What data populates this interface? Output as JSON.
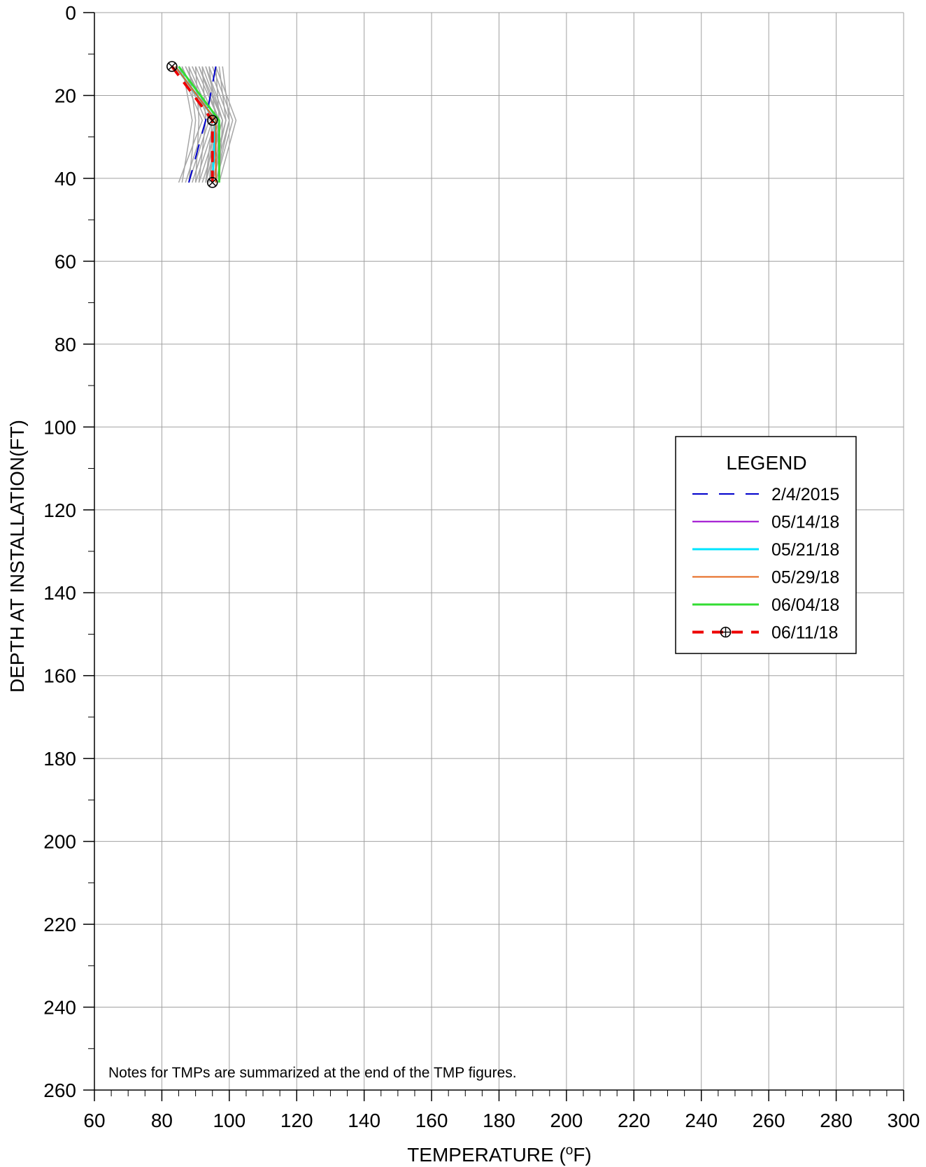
{
  "chart_data": {
    "type": "line",
    "xlabel": "TEMPERATURE (",
    "xlabel_unit": "o",
    "xlabel_end": "F)",
    "ylabel": "DEPTH AT INSTALLATION(FT)",
    "xlim": [
      60,
      300
    ],
    "ylim": [
      0,
      260
    ],
    "y_inverted": true,
    "x_ticks": [
      60,
      80,
      100,
      120,
      140,
      160,
      180,
      200,
      220,
      240,
      260,
      280,
      300
    ],
    "y_ticks": [
      0,
      20,
      40,
      60,
      80,
      100,
      120,
      140,
      160,
      180,
      200,
      220,
      240,
      260
    ],
    "grid": true,
    "legend": {
      "title": "LEGEND",
      "position": "right"
    },
    "note": "Notes for TMPs are summarized at the end of the TMP figures.",
    "background_series_color": "#a6a6a6",
    "background_series": [
      {
        "points": [
          [
            85,
            13
          ],
          [
            92,
            26
          ],
          [
            85,
            41
          ]
        ]
      },
      {
        "points": [
          [
            86,
            13
          ],
          [
            93,
            26
          ],
          [
            87,
            41
          ]
        ]
      },
      {
        "points": [
          [
            87,
            13
          ],
          [
            94,
            26
          ],
          [
            88,
            41
          ]
        ]
      },
      {
        "points": [
          [
            88,
            13
          ],
          [
            95,
            26
          ],
          [
            89,
            41
          ]
        ]
      },
      {
        "points": [
          [
            89,
            13
          ],
          [
            96,
            26
          ],
          [
            90,
            41
          ]
        ]
      },
      {
        "points": [
          [
            90,
            13
          ],
          [
            97,
            26
          ],
          [
            91,
            41
          ]
        ]
      },
      {
        "points": [
          [
            91,
            13
          ],
          [
            98,
            26
          ],
          [
            92,
            41
          ]
        ]
      },
      {
        "points": [
          [
            92,
            13
          ],
          [
            98,
            26
          ],
          [
            93,
            41
          ]
        ]
      },
      {
        "points": [
          [
            93,
            13
          ],
          [
            99,
            26
          ],
          [
            94,
            41
          ]
        ]
      },
      {
        "points": [
          [
            94,
            13
          ],
          [
            100,
            26
          ],
          [
            95,
            41
          ]
        ]
      },
      {
        "points": [
          [
            95,
            13
          ],
          [
            101,
            26
          ],
          [
            96,
            41
          ]
        ]
      },
      {
        "points": [
          [
            96,
            13
          ],
          [
            102,
            26
          ],
          [
            97,
            41
          ]
        ]
      },
      {
        "points": [
          [
            97,
            13
          ],
          [
            99,
            26
          ],
          [
            95,
            41
          ]
        ]
      },
      {
        "points": [
          [
            98,
            13
          ],
          [
            100,
            26
          ],
          [
            96,
            41
          ]
        ]
      },
      {
        "points": [
          [
            86,
            13
          ],
          [
            89,
            26
          ],
          [
            86,
            41
          ]
        ]
      },
      {
        "points": [
          [
            88,
            13
          ],
          [
            90,
            26
          ],
          [
            88,
            41
          ]
        ]
      },
      {
        "points": [
          [
            90,
            13
          ],
          [
            91,
            26
          ],
          [
            90,
            41
          ]
        ]
      },
      {
        "points": [
          [
            92,
            13
          ],
          [
            93,
            26
          ],
          [
            91,
            41
          ]
        ]
      },
      {
        "points": [
          [
            94,
            13
          ],
          [
            96,
            26
          ],
          [
            93,
            41
          ]
        ]
      },
      {
        "points": [
          [
            96,
            13
          ],
          [
            97,
            26
          ],
          [
            94,
            41
          ]
        ]
      },
      {
        "points": [
          [
            87,
            13
          ],
          [
            95,
            26
          ],
          [
            93,
            41
          ]
        ]
      },
      {
        "points": [
          [
            89,
            13
          ],
          [
            96,
            26
          ],
          [
            94,
            41
          ]
        ]
      },
      {
        "points": [
          [
            91,
            13
          ],
          [
            97,
            26
          ],
          [
            96,
            41
          ]
        ]
      },
      {
        "points": [
          [
            93,
            13
          ],
          [
            98,
            26
          ],
          [
            97,
            41
          ]
        ]
      }
    ],
    "series": [
      {
        "name": "2/4/2015",
        "color": "#0000cc",
        "dash": "22,16",
        "width": 2,
        "marker": false,
        "points": [
          [
            96,
            13
          ],
          [
            93,
            26
          ],
          [
            88,
            41
          ]
        ]
      },
      {
        "name": "05/14/18",
        "color": "#9900cc",
        "dash": "",
        "width": 2,
        "marker": false,
        "points": [
          [
            84,
            13
          ],
          [
            96,
            26
          ],
          [
            96,
            41
          ]
        ]
      },
      {
        "name": "05/21/18",
        "color": "#00e5ff",
        "dash": "",
        "width": 3,
        "marker": false,
        "points": [
          [
            84,
            13
          ],
          [
            96,
            26
          ],
          [
            95,
            41
          ]
        ]
      },
      {
        "name": "05/29/18",
        "color": "#e5661a",
        "dash": "",
        "width": 2,
        "marker": false,
        "points": [
          [
            84,
            13
          ],
          [
            96,
            26
          ],
          [
            96,
            41
          ]
        ]
      },
      {
        "name": "06/04/18",
        "color": "#33dd33",
        "dash": "",
        "width": 3,
        "marker": false,
        "points": [
          [
            85,
            13
          ],
          [
            97,
            26
          ],
          [
            97,
            41
          ]
        ]
      },
      {
        "name": "06/11/18",
        "color": "#ee0000",
        "dash": "16,12",
        "width": 4,
        "marker": true,
        "points": [
          [
            83,
            13
          ],
          [
            95,
            26
          ],
          [
            95,
            41
          ]
        ]
      }
    ]
  }
}
